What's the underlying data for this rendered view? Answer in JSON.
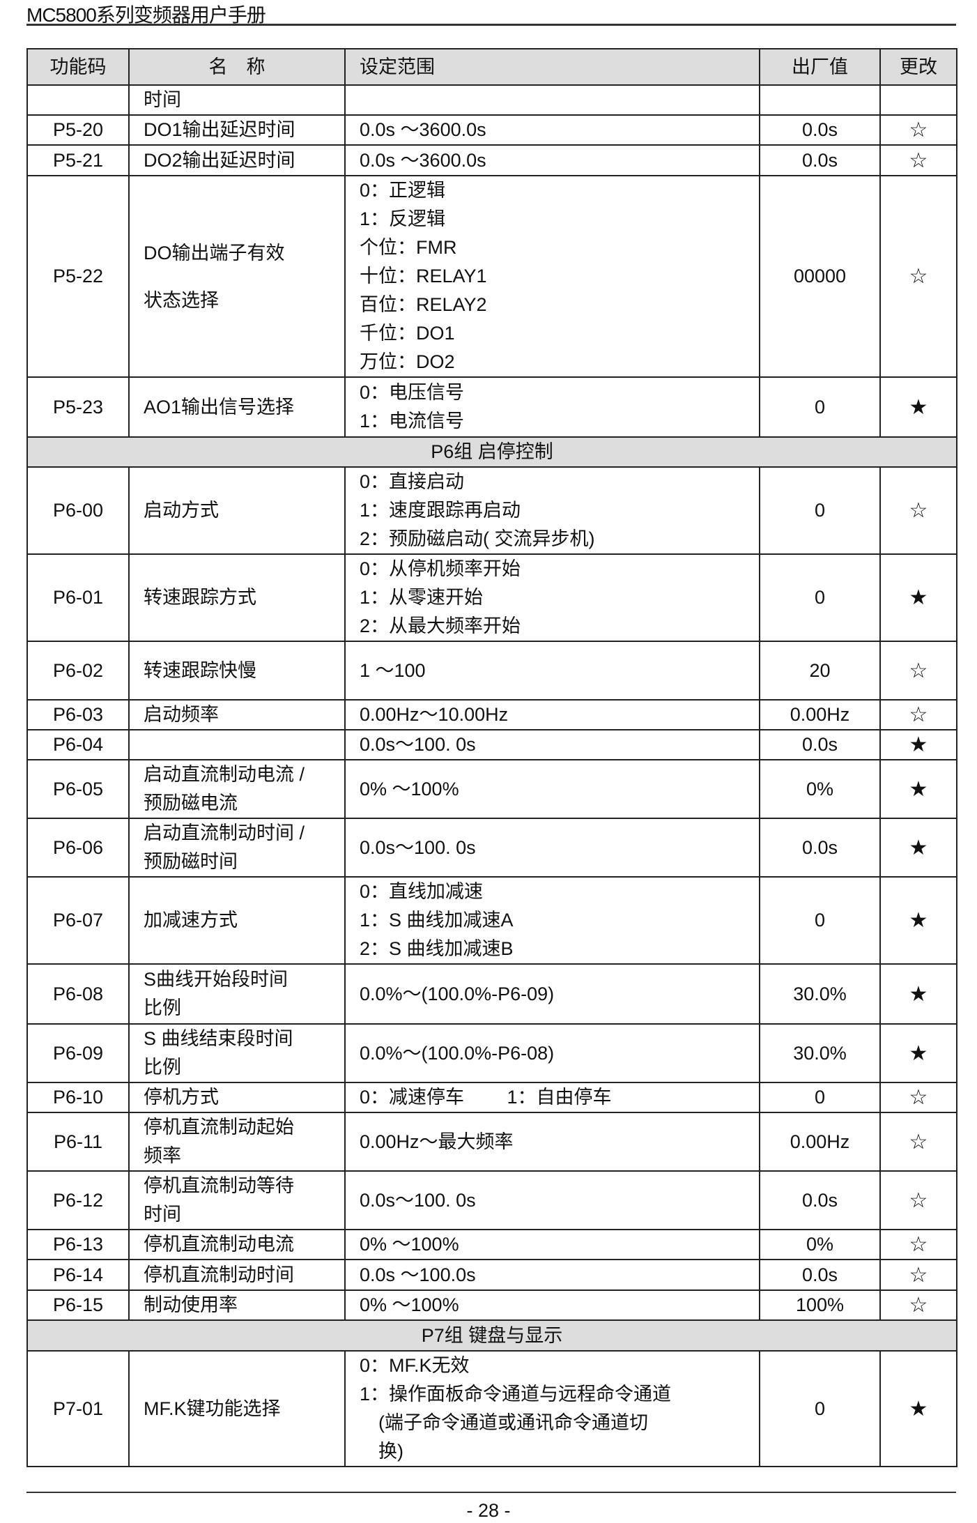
{
  "header": {
    "title": "MC5800系列变频器用户手册"
  },
  "table": {
    "columns": [
      "功能码",
      "名　称",
      "设定范围",
      "出厂值",
      "更改"
    ],
    "rows": [
      {
        "code": "",
        "name": [
          "时间"
        ],
        "range": [],
        "default": "",
        "change": ""
      },
      {
        "code": "P5-20",
        "name": [
          "DO1输出延迟时间"
        ],
        "range": [
          "0.0s ～3600.0s"
        ],
        "default": "0.0s",
        "change": "☆"
      },
      {
        "code": "P5-21",
        "name": [
          "DO2输出延迟时间"
        ],
        "range": [
          "0.0s ～3600.0s"
        ],
        "default": "0.0s",
        "change": "☆"
      },
      {
        "code": "P5-22",
        "name": [
          "DO输出端子有效",
          "状态选择"
        ],
        "range": [
          "0：正逻辑",
          "1：反逻辑",
          "个位：FMR",
          "十位：RELAY1",
          "百位：RELAY2",
          "千位：DO1",
          "万位：DO2"
        ],
        "default": "00000",
        "change": "☆"
      },
      {
        "code": "P5-23",
        "name": [
          "AO1输出信号选择"
        ],
        "range": [
          "0：电压信号",
          "1：电流信号"
        ],
        "default": "0",
        "change": "★"
      },
      {
        "group": "P6组 启停控制"
      },
      {
        "code": "P6-00",
        "name": [
          "启动方式"
        ],
        "range": [
          "0：直接启动",
          "1：速度跟踪再启动",
          "2：预励磁启动( 交流异步机)"
        ],
        "default": "0",
        "change": "☆"
      },
      {
        "code": "P6-01",
        "name": [
          "转速跟踪方式"
        ],
        "range": [
          "0：从停机频率开始",
          "1：从零速开始",
          "2：从最大频率开始"
        ],
        "default": "0",
        "change": "★"
      },
      {
        "code": "P6-02",
        "name": [
          "转速跟踪快慢"
        ],
        "range": [
          "1 ～100"
        ],
        "default": "20",
        "change": "☆"
      },
      {
        "code": "P6-03",
        "name": [
          "启动频率"
        ],
        "range": [
          "0.00Hz～10.00Hz"
        ],
        "default": "0.00Hz",
        "change": "☆"
      },
      {
        "code": "P6-04",
        "name": [],
        "range": [
          "0.0s～100. 0s"
        ],
        "default": "0.0s",
        "change": "★"
      },
      {
        "code": "P6-05",
        "name": [
          "启动直流制动电流 /",
          "预励磁电流"
        ],
        "range": [
          "0% ～100%"
        ],
        "default": "0%",
        "change": "★"
      },
      {
        "code": "P6-06",
        "name": [
          "启动直流制动时间 /",
          "预励磁时间"
        ],
        "range": [
          "0.0s～100. 0s"
        ],
        "default": "0.0s",
        "change": "★"
      },
      {
        "code": "P6-07",
        "name": [
          "加减速方式"
        ],
        "range": [
          "0：直线加减速",
          "1：S 曲线加减速A",
          "2：S 曲线加减速B"
        ],
        "default": "0",
        "change": "★"
      },
      {
        "code": "P6-08",
        "name": [
          "S曲线开始段时间",
          "比例"
        ],
        "range": [
          "0.0%～(100.0%-P6-09)"
        ],
        "default": "30.0%",
        "change": "★"
      },
      {
        "code": "P6-09",
        "name": [
          "S 曲线结束段时间",
          "比例"
        ],
        "range": [
          "0.0%～(100.0%-P6-08)"
        ],
        "default": "30.0%",
        "change": "★"
      },
      {
        "code": "P6-10",
        "name": [
          "停机方式"
        ],
        "range": [
          "0：减速停车　　 1：自由停车"
        ],
        "default": "0",
        "change": "☆"
      },
      {
        "code": "P6-11",
        "name": [
          "停机直流制动起始",
          "频率"
        ],
        "range": [
          "0.00Hz～最大频率"
        ],
        "default": "0.00Hz",
        "change": "☆"
      },
      {
        "code": "P6-12",
        "name": [
          "停机直流制动等待",
          "时间"
        ],
        "range": [
          "0.0s～100. 0s"
        ],
        "default": "0.0s",
        "change": "☆"
      },
      {
        "code": "P6-13",
        "name": [
          "停机直流制动电流"
        ],
        "range": [
          "0% ～100%"
        ],
        "default": "0%",
        "change": "☆"
      },
      {
        "code": "P6-14",
        "name": [
          "停机直流制动时间"
        ],
        "range": [
          "0.0s ～100.0s"
        ],
        "default": "0.0s",
        "change": "☆"
      },
      {
        "code": "P6-15",
        "name": [
          "制动使用率"
        ],
        "range": [
          "0% ～100%"
        ],
        "default": "100%",
        "change": "☆"
      },
      {
        "group": "P7组 键盘与显示"
      },
      {
        "code": "P7-01",
        "name": [
          "MF.K键功能选择"
        ],
        "range": [
          "0：MF.K无效",
          "1：操作面板命令通道与远程命令通道",
          "　(端子命令通道或通讯命令通道切",
          "　换)"
        ],
        "default": "0",
        "change": "★"
      }
    ]
  },
  "footer": {
    "page": "- 28 -"
  }
}
